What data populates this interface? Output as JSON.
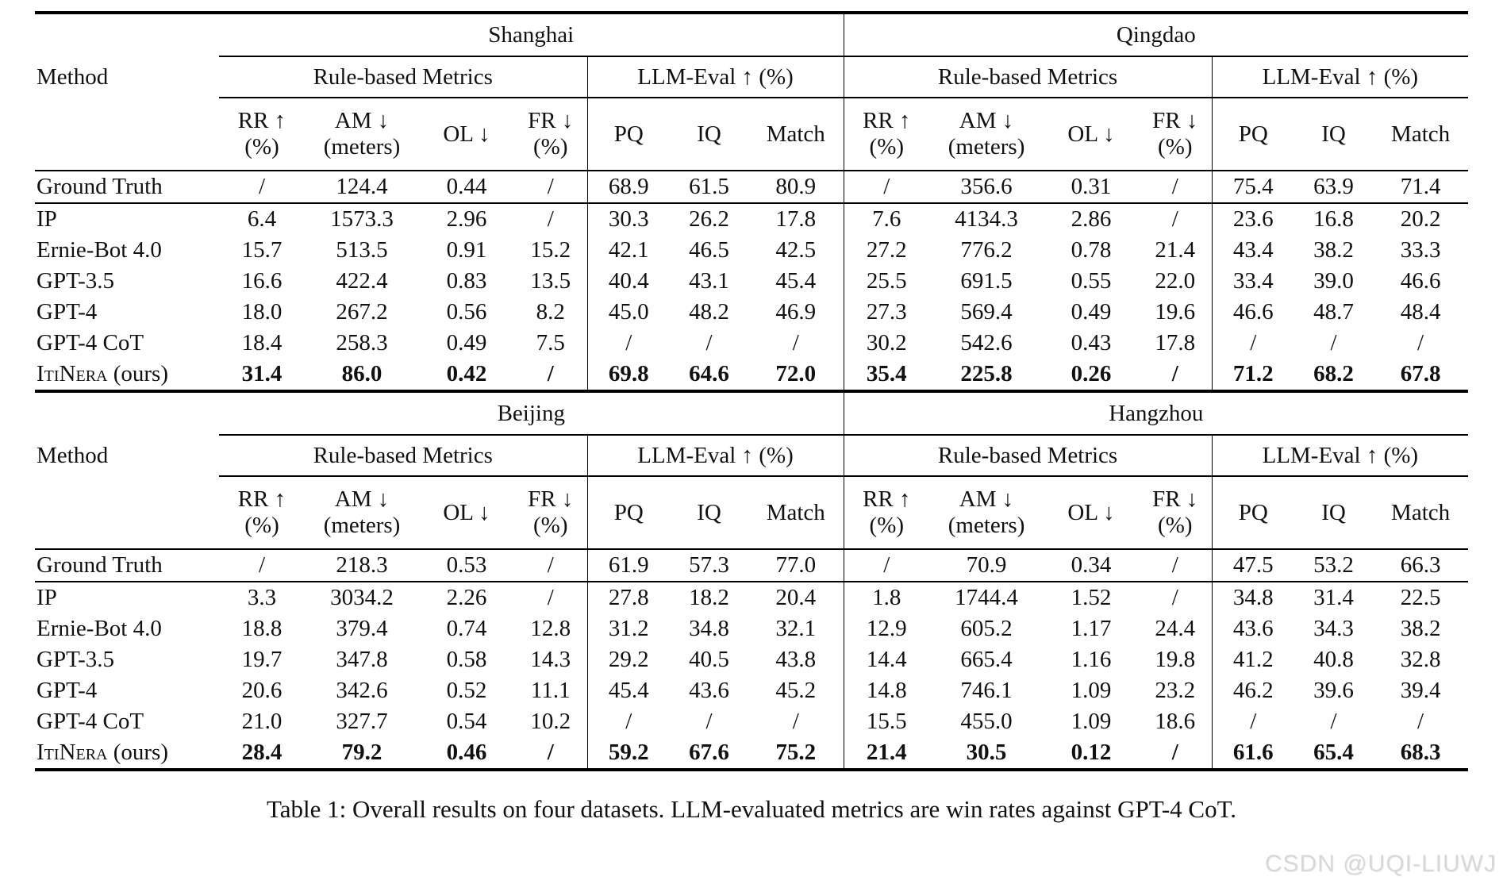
{
  "table": {
    "method_header": "Method",
    "group_headers": {
      "rule_based": "Rule-based Metrics",
      "llm_eval": "LLM-Eval ↑ (%)"
    },
    "sub_headers": [
      {
        "line1": "RR ↑",
        "line2": "(%)"
      },
      {
        "line1": "AM ↓",
        "line2": "(meters)"
      },
      {
        "line1": "OL ↓",
        "line2": ""
      },
      {
        "line1": "FR ↓",
        "line2": "(%)"
      },
      {
        "line1": "PQ",
        "line2": ""
      },
      {
        "line1": "IQ",
        "line2": ""
      },
      {
        "line1": "Match",
        "line2": ""
      }
    ],
    "halves": [
      {
        "cities": [
          "Shanghai",
          "Qingdao"
        ],
        "ground_truth": {
          "method": "Ground Truth",
          "values": [
            "/",
            "124.4",
            "0.44",
            "/",
            "68.9",
            "61.5",
            "80.9",
            "/",
            "356.6",
            "0.31",
            "/",
            "75.4",
            "63.9",
            "71.4"
          ]
        },
        "rows": [
          {
            "method": "IP",
            "suffix": "",
            "bold": false,
            "smallcaps": false,
            "values": [
              "6.4",
              "1573.3",
              "2.96",
              "/",
              "30.3",
              "26.2",
              "17.8",
              "7.6",
              "4134.3",
              "2.86",
              "/",
              "23.6",
              "16.8",
              "20.2"
            ]
          },
          {
            "method": "Ernie-Bot 4.0",
            "suffix": "",
            "bold": false,
            "smallcaps": false,
            "values": [
              "15.7",
              "513.5",
              "0.91",
              "15.2",
              "42.1",
              "46.5",
              "42.5",
              "27.2",
              "776.2",
              "0.78",
              "21.4",
              "43.4",
              "38.2",
              "33.3"
            ]
          },
          {
            "method": "GPT-3.5",
            "suffix": "",
            "bold": false,
            "smallcaps": false,
            "values": [
              "16.6",
              "422.4",
              "0.83",
              "13.5",
              "40.4",
              "43.1",
              "45.4",
              "25.5",
              "691.5",
              "0.55",
              "22.0",
              "33.4",
              "39.0",
              "46.6"
            ]
          },
          {
            "method": "GPT-4",
            "suffix": "",
            "bold": false,
            "smallcaps": false,
            "values": [
              "18.0",
              "267.2",
              "0.56",
              "8.2",
              "45.0",
              "48.2",
              "46.9",
              "27.3",
              "569.4",
              "0.49",
              "19.6",
              "46.6",
              "48.7",
              "48.4"
            ]
          },
          {
            "method": "GPT-4 CoT",
            "suffix": "",
            "bold": false,
            "smallcaps": false,
            "values": [
              "18.4",
              "258.3",
              "0.49",
              "7.5",
              "/",
              "/",
              "/",
              "30.2",
              "542.6",
              "0.43",
              "17.8",
              "/",
              "/",
              "/"
            ]
          },
          {
            "method": "ItiNera",
            "suffix": " (ours)",
            "bold": true,
            "smallcaps": true,
            "values": [
              "31.4",
              "86.0",
              "0.42",
              "/",
              "69.8",
              "64.6",
              "72.0",
              "35.4",
              "225.8",
              "0.26",
              "/",
              "71.2",
              "68.2",
              "67.8"
            ]
          }
        ]
      },
      {
        "cities": [
          "Beijing",
          "Hangzhou"
        ],
        "ground_truth": {
          "method": "Ground Truth",
          "values": [
            "/",
            "218.3",
            "0.53",
            "/",
            "61.9",
            "57.3",
            "77.0",
            "/",
            "70.9",
            "0.34",
            "/",
            "47.5",
            "53.2",
            "66.3"
          ]
        },
        "rows": [
          {
            "method": "IP",
            "suffix": "",
            "bold": false,
            "smallcaps": false,
            "values": [
              "3.3",
              "3034.2",
              "2.26",
              "/",
              "27.8",
              "18.2",
              "20.4",
              "1.8",
              "1744.4",
              "1.52",
              "/",
              "34.8",
              "31.4",
              "22.5"
            ]
          },
          {
            "method": "Ernie-Bot 4.0",
            "suffix": "",
            "bold": false,
            "smallcaps": false,
            "values": [
              "18.8",
              "379.4",
              "0.74",
              "12.8",
              "31.2",
              "34.8",
              "32.1",
              "12.9",
              "605.2",
              "1.17",
              "24.4",
              "43.6",
              "34.3",
              "38.2"
            ]
          },
          {
            "method": "GPT-3.5",
            "suffix": "",
            "bold": false,
            "smallcaps": false,
            "values": [
              "19.7",
              "347.8",
              "0.58",
              "14.3",
              "29.2",
              "40.5",
              "43.8",
              "14.4",
              "665.4",
              "1.16",
              "19.8",
              "41.2",
              "40.8",
              "32.8"
            ]
          },
          {
            "method": "GPT-4",
            "suffix": "",
            "bold": false,
            "smallcaps": false,
            "values": [
              "20.6",
              "342.6",
              "0.52",
              "11.1",
              "45.4",
              "43.6",
              "45.2",
              "14.8",
              "746.1",
              "1.09",
              "23.2",
              "46.2",
              "39.6",
              "39.4"
            ]
          },
          {
            "method": "GPT-4 CoT",
            "suffix": "",
            "bold": false,
            "smallcaps": false,
            "values": [
              "21.0",
              "327.7",
              "0.54",
              "10.2",
              "/",
              "/",
              "/",
              "15.5",
              "455.0",
              "1.09",
              "18.6",
              "/",
              "/",
              "/"
            ]
          },
          {
            "method": "ItiNera",
            "suffix": " (ours)",
            "bold": true,
            "smallcaps": true,
            "values": [
              "28.4",
              "79.2",
              "0.46",
              "/",
              "59.2",
              "67.6",
              "75.2",
              "21.4",
              "30.5",
              "0.12",
              "/",
              "61.6",
              "65.4",
              "68.3"
            ]
          }
        ]
      }
    ]
  },
  "caption": "Table 1: Overall results on four datasets. LLM-evaluated metrics are win rates against GPT-4 CoT.",
  "watermark": "CSDN @UQI-LIUWJ"
}
